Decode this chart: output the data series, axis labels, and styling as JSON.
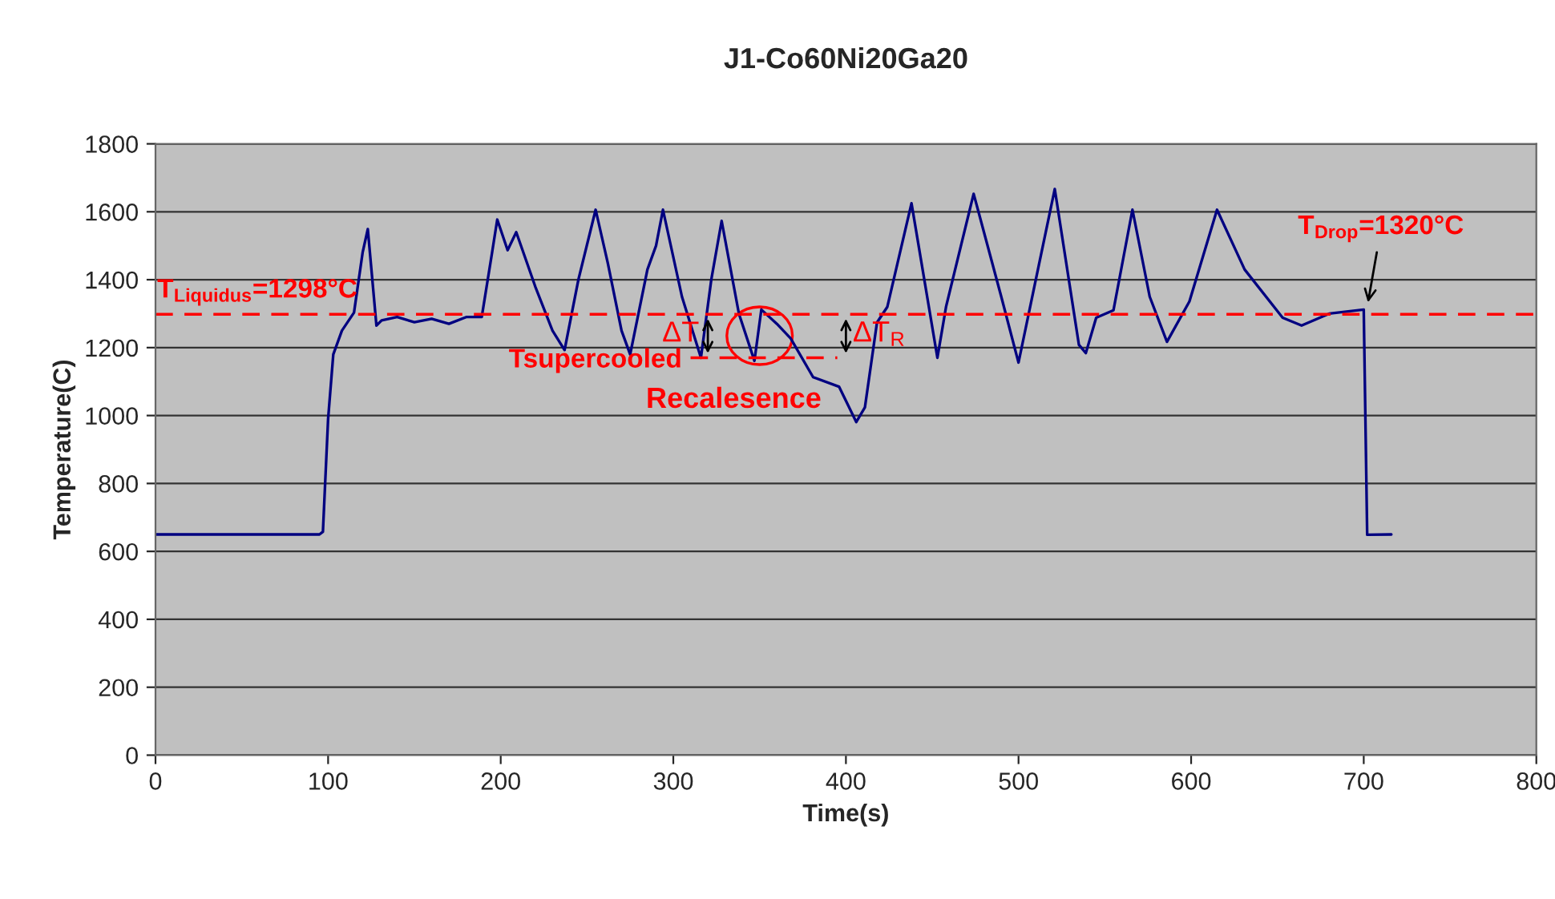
{
  "chart_data": {
    "type": "line",
    "title": "J1-Co60Ni20Ga20",
    "xlabel": "Time(s)",
    "ylabel": "Temperature(C)",
    "series": [
      {
        "color": "#000080",
        "x": [
          0,
          40,
          95,
          97,
          100,
          103,
          108,
          115,
          120,
          123,
          128,
          131,
          140,
          150,
          160,
          170,
          180,
          189,
          195,
          198,
          204,
          209,
          220,
          230,
          237,
          245,
          255,
          262,
          270,
          275,
          285,
          290,
          294,
          305,
          316,
          322,
          328,
          338,
          347,
          351,
          360,
          368,
          381,
          396,
          406,
          411,
          418,
          424,
          438,
          453,
          458,
          474,
          490,
          500,
          510,
          521,
          535,
          539,
          545,
          555,
          566,
          576,
          586,
          599,
          615,
          631,
          653,
          664,
          680,
          700,
          702,
          716
        ],
        "values": [
          650,
          650,
          650,
          658,
          990,
          1180,
          1250,
          1303,
          1480,
          1549,
          1265,
          1280,
          1290,
          1275,
          1285,
          1270,
          1290,
          1290,
          1480,
          1577,
          1487,
          1540,
          1380,
          1250,
          1193,
          1400,
          1606,
          1450,
          1250,
          1180,
          1430,
          1500,
          1606,
          1350,
          1170,
          1400,
          1573,
          1300,
          1161,
          1312,
          1270,
          1227,
          1113,
          1085,
          981,
          1024,
          1274,
          1320,
          1625,
          1170,
          1320,
          1653,
          1350,
          1156,
          1400,
          1667,
          1208,
          1184,
          1288,
          1310,
          1606,
          1350,
          1217,
          1336,
          1606,
          1430,
          1288,
          1265,
          1300,
          1312,
          649,
          650
        ]
      }
    ],
    "xlim": [
      0,
      800
    ],
    "ylim": [
      0,
      1800
    ],
    "xticks": [
      0,
      100,
      200,
      300,
      400,
      500,
      600,
      700,
      800
    ],
    "yticks": [
      0,
      200,
      400,
      600,
      800,
      1000,
      1200,
      1400,
      1600,
      1800
    ],
    "grid": "y",
    "line_style": "solid",
    "marker": "none",
    "ref_lines": [
      {
        "axis": "y",
        "value": 1298,
        "label": "T$_{Liquidus}$=1298°C",
        "color": "#ff0000",
        "line_style": "dashed"
      },
      {
        "axis": "y",
        "value": 1170,
        "label": "Tsupercooled",
        "color": "#ff0000",
        "line_style": "dashed"
      }
    ],
    "annotations": [
      "ΔT",
      "ΔT$_{R}$",
      "Recalesence",
      {
        "text": "T$_{Drop}$=1320°C",
        "x": 702,
        "y": 1320
      }
    ]
  }
}
